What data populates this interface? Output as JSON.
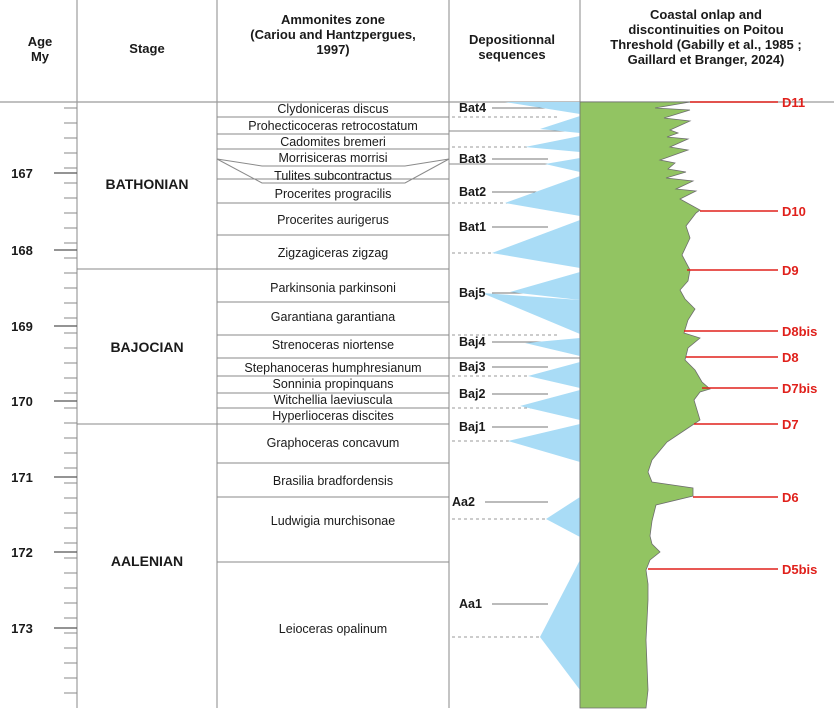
{
  "header": {
    "age": [
      "Age",
      "My"
    ],
    "stage": "Stage",
    "zone": [
      "Ammonites zone",
      "(Cariou and Hantzpergues,",
      "1997)"
    ],
    "sequences": [
      "Depositionnal",
      "sequences"
    ],
    "onlap": [
      "Coastal onlap and",
      "discontinuities on Poitou",
      "Threshold (Gabilly et al., 1985 ;",
      "Gaillard et Branger, 2024)"
    ]
  },
  "age_ticks": [
    "167",
    "168",
    "169",
    "170",
    "171",
    "172",
    "173"
  ],
  "stages": [
    "BATHONIAN",
    "BAJOCIAN",
    "AALENIAN"
  ],
  "zones": [
    "Clydoniceras discus",
    "Prohecticoceras retrocostatum",
    "Cadomites bremeri",
    "Morrisiceras morrisi",
    "Tulites subcontractus",
    "Procerites progracilis",
    "Procerites aurigerus",
    "Zigzagiceras zigzag",
    "Parkinsonia parkinsoni",
    "Garantiana garantiana",
    "Strenoceras niortense",
    "Stephanoceras humphresianum",
    "Sonninia propinquans",
    "Witchellia laeviuscula",
    "Hyperlioceras discites",
    "Graphoceras concavum",
    "Brasilia bradfordensis",
    "Ludwigia murchisonae",
    "Leioceras opalinum"
  ],
  "sequences": [
    "Bat4",
    "Bat3",
    "Bat2",
    "Bat1",
    "Baj5",
    "Baj4",
    "Baj3",
    "Baj2",
    "Baj1",
    "Aa2",
    "Aa1"
  ],
  "discontinuities": [
    "D11",
    "D10",
    "D9",
    "D8bis",
    "D8",
    "D7bis",
    "D7",
    "D6",
    "D5bis"
  ],
  "colors": {
    "onlap": "#92c462",
    "sequence": "#a9dcf6",
    "discontinuity": "#e0201b",
    "grid": "#8a8a8a"
  }
}
